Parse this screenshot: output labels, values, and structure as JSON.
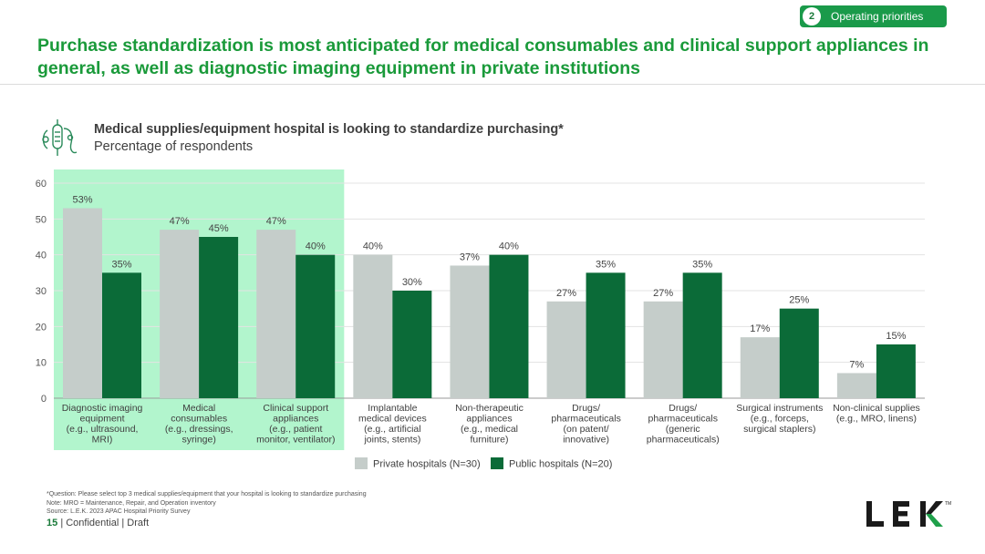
{
  "section_badge": {
    "number": "2",
    "label": "Operating priorities"
  },
  "headline": "Purchase standardization is most anticipated for medical consumables and clinical support appliances in general, as well as diagnostic imaging equipment in private institutions",
  "icon": "medical-devices-icon",
  "chart_title": "Medical supplies/equipment hospital is looking to standardize purchasing*",
  "chart_subtitle": "Percentage of respondents",
  "colors": {
    "private": "#c5cdca",
    "public": "#0b6b38",
    "highlight": "#b2f5cd",
    "accent": "#1a9a4a"
  },
  "chart_data": {
    "type": "bar",
    "title": "Medical supplies/equipment hospital is looking to standardize purchasing*",
    "ylabel": "Percentage of respondents",
    "ylim": [
      0,
      60
    ],
    "yticks": [
      0,
      10,
      20,
      30,
      40,
      50,
      60
    ],
    "grid": true,
    "legend_position": "bottom-center",
    "highlighted_categories": [
      0,
      1,
      2
    ],
    "categories": [
      [
        "Diagnostic imaging",
        "equipment",
        "(e.g., ultrasound,",
        "MRI)"
      ],
      [
        "Medical",
        "consumables",
        "(e.g., dressings,",
        "syringe)"
      ],
      [
        "Clinical support",
        "appliances",
        "(e.g., patient",
        "monitor, ventilator)"
      ],
      [
        "Implantable",
        "medical devices",
        "(e.g., artificial",
        "joints, stents)"
      ],
      [
        "Non-therapeutic",
        "appliances",
        "(e.g., medical",
        "furniture)"
      ],
      [
        "Drugs/",
        "pharmaceuticals",
        "(on patent/",
        "innovative)"
      ],
      [
        "Drugs/",
        "pharmaceuticals",
        "(generic",
        "pharmaceuticals)"
      ],
      [
        "Surgical instruments",
        "(e.g., forceps,",
        "surgical staplers)"
      ],
      [
        "Non-clinical supplies",
        "(e.g., MRO, linens)"
      ]
    ],
    "series": [
      {
        "name": "Private hospitals (N=30)",
        "values": [
          53,
          47,
          47,
          40,
          37,
          27,
          27,
          17,
          7
        ],
        "labels": [
          "53%",
          "47%",
          "47%",
          "40%",
          "37%",
          "27%",
          "27%",
          "17%",
          "7%"
        ]
      },
      {
        "name": "Public hospitals (N=20)",
        "values": [
          35,
          45,
          40,
          30,
          40,
          35,
          35,
          25,
          15
        ],
        "labels": [
          "35%",
          "45%",
          "40%",
          "30%",
          "40%",
          "35%",
          "35%",
          "25%",
          "15%"
        ]
      }
    ]
  },
  "footnotes": [
    "*Question: Please select top 3 medical supplies/equipment that your hospital is looking to standardize purchasing",
    "Note: MRO = Maintenance, Repair, and Operation inventory",
    "Source:  L.E.K. 2023 APAC Hospital Priority Survey"
  ],
  "footer": {
    "page": "15",
    "text": "| Confidential | Draft"
  },
  "logo": {
    "text": "LEK",
    "tm": "TM"
  }
}
